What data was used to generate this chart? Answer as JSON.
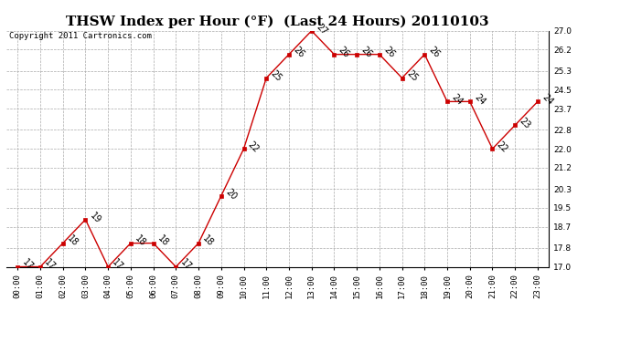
{
  "title": "THSW Index per Hour (°F)  (Last 24 Hours) 20110103",
  "copyright": "Copyright 2011 Cartronics.com",
  "hours": [
    "00:00",
    "01:00",
    "02:00",
    "03:00",
    "04:00",
    "05:00",
    "06:00",
    "07:00",
    "08:00",
    "09:00",
    "10:00",
    "11:00",
    "12:00",
    "13:00",
    "14:00",
    "15:00",
    "16:00",
    "17:00",
    "18:00",
    "19:00",
    "20:00",
    "21:00",
    "22:00",
    "23:00"
  ],
  "values": [
    17,
    17,
    18,
    19,
    17,
    18,
    18,
    17,
    18,
    20,
    22,
    25,
    26,
    27,
    26,
    26,
    26,
    25,
    26,
    24,
    24,
    22,
    23,
    24
  ],
  "line_color": "#cc0000",
  "marker_color": "#cc0000",
  "bg_color": "#ffffff",
  "grid_color": "#aaaaaa",
  "ylim_min": 17.0,
  "ylim_max": 27.0,
  "yticks": [
    17.0,
    17.8,
    18.7,
    19.5,
    20.3,
    21.2,
    22.0,
    22.8,
    23.7,
    24.5,
    25.3,
    26.2,
    27.0
  ],
  "title_fontsize": 11,
  "label_fontsize": 7,
  "tick_fontsize": 6.5,
  "copyright_fontsize": 6.5,
  "label_rotation": 315
}
